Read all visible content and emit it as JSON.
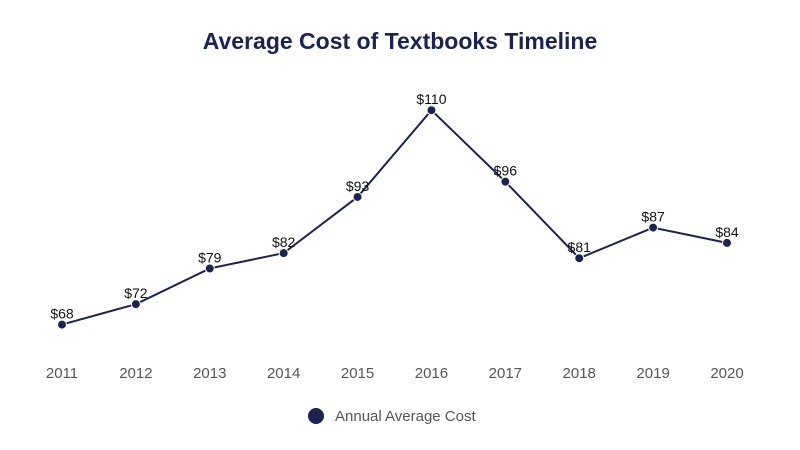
{
  "chart_data": {
    "type": "line",
    "title": "Average Cost of Textbooks Timeline",
    "x": [
      "2011",
      "2012",
      "2013",
      "2014",
      "2015",
      "2016",
      "2017",
      "2018",
      "2019",
      "2020"
    ],
    "series": [
      {
        "name": "Annual Average Cost",
        "values": [
          68,
          72,
          79,
          82,
          93,
          110,
          96,
          81,
          87,
          84
        ],
        "labels": [
          "$68",
          "$72",
          "$79",
          "$82",
          "$93",
          "$110",
          "$96",
          "$81",
          "$87",
          "$84"
        ]
      }
    ],
    "xlabel": "",
    "ylabel": "",
    "ylim": [
      64,
      112
    ],
    "grid": false,
    "legend_position": "bottom",
    "colors": {
      "line": "#1c2251",
      "title": "#1c2251",
      "tick": "#555555"
    }
  }
}
